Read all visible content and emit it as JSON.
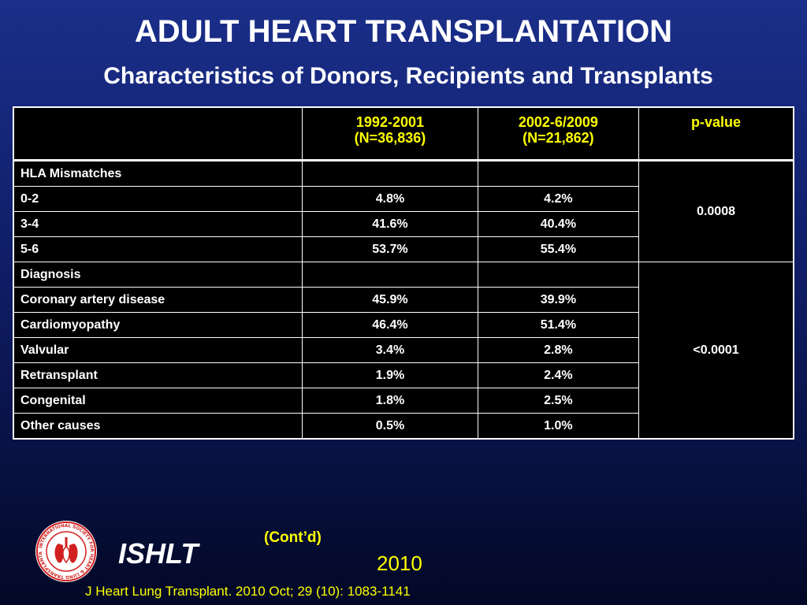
{
  "slide": {
    "title": "ADULT HEART TRANSPLANTATION",
    "subtitle": "Characteristics of Donors, Recipients and Transplants"
  },
  "table": {
    "headers": {
      "col1_line1": "1992-2001",
      "col1_line2": "(N=36,836)",
      "col2_line1": "2002-6/2009",
      "col2_line2": "(N=21,862)",
      "col3": "p-value"
    },
    "hla": {
      "label": "HLA Mismatches",
      "p_value": "0.0008",
      "rows": [
        {
          "label": "0-2",
          "v1": "4.8%",
          "v2": "4.2%"
        },
        {
          "label": "3-4",
          "v1": "41.6%",
          "v2": "40.4%"
        },
        {
          "label": "5-6",
          "v1": "53.7%",
          "v2": "55.4%"
        }
      ]
    },
    "diagnosis": {
      "label": "Diagnosis",
      "p_value": "<0.0001",
      "rows": [
        {
          "label": "Coronary artery disease",
          "v1": "45.9%",
          "v2": "39.9%"
        },
        {
          "label": "Cardiomyopathy",
          "v1": "46.4%",
          "v2": "51.4%"
        },
        {
          "label": "Valvular",
          "v1": "3.4%",
          "v2": "2.8%"
        },
        {
          "label": "Retransplant",
          "v1": "1.9%",
          "v2": "2.4%"
        },
        {
          "label": "Congenital",
          "v1": "1.8%",
          "v2": "2.5%"
        },
        {
          "label": "Other causes",
          "v1": "0.5%",
          "v2": "1.0%"
        }
      ]
    }
  },
  "footer": {
    "logo_text": "INTERNATIONAL SOCIETY FOR HEART & LUNG TRANSPLANTATION",
    "brand": "ISHLT",
    "contd": "(Cont’d)",
    "year": "2010",
    "citation": "J Heart Lung Transplant. 2010 Oct; 29 (10): 1083-1141"
  },
  "colors": {
    "accent_yellow": "#ffff00",
    "background_top": "#1b2f8a",
    "background_bottom": "#030826",
    "logo_red": "#d22020"
  }
}
